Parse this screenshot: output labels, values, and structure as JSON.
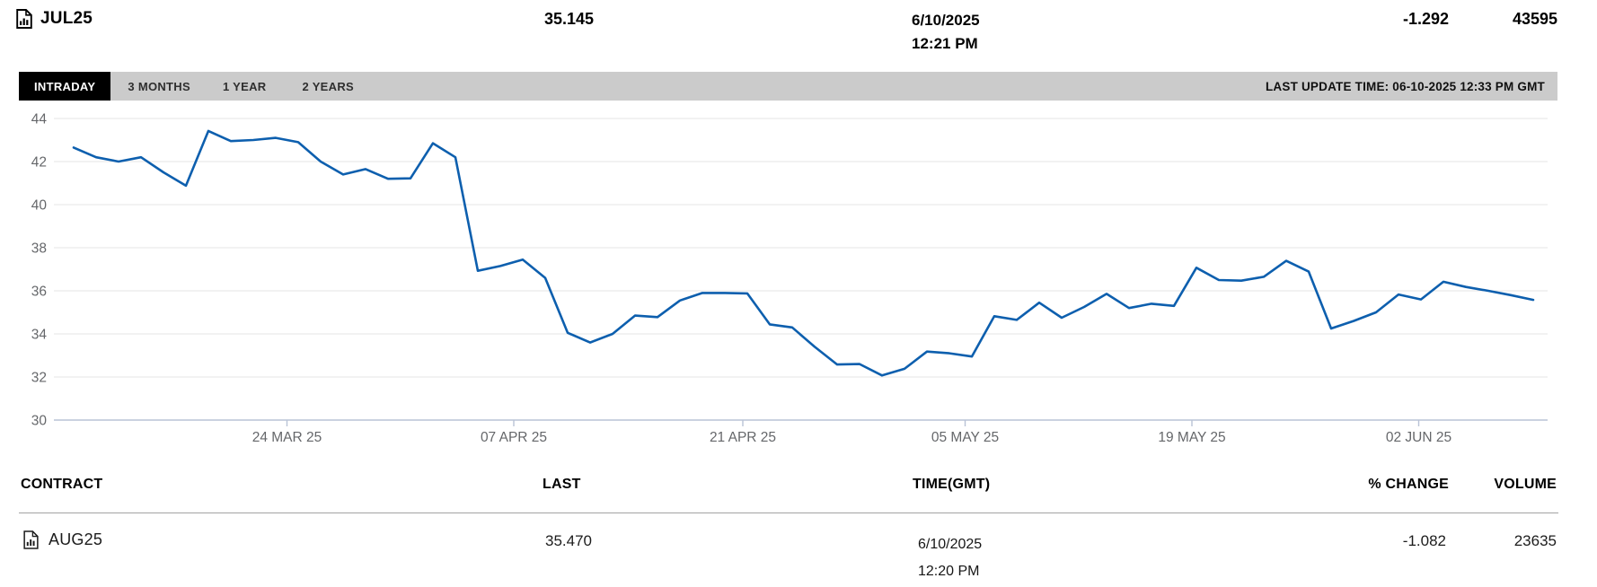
{
  "header": {
    "contract": "JUL25",
    "last": "35.145",
    "date": "6/10/2025",
    "time": "12:21 PM",
    "pct_change": "-1.292",
    "volume": "43595"
  },
  "tabs": {
    "items": [
      {
        "label": "INTRADAY",
        "active": true
      },
      {
        "label": "3 MONTHS",
        "active": false
      },
      {
        "label": "1 YEAR",
        "active": false
      },
      {
        "label": "2 YEARS",
        "active": false
      }
    ],
    "last_update": "LAST UPDATE TIME: 06-10-2025 12:33 PM GMT"
  },
  "table": {
    "headers": {
      "contract": "CONTRACT",
      "last": "LAST",
      "time": "TIME(GMT)",
      "pct_change": "% CHANGE",
      "volume": "VOLUME"
    },
    "row": {
      "contract": "AUG25",
      "last": "35.470",
      "date": "6/10/2025",
      "time": "12:20 PM",
      "pct_change": "-1.082",
      "volume": "23635"
    }
  },
  "chart_data": {
    "type": "line",
    "title": "",
    "xlabel": "",
    "ylabel": "",
    "grid": true,
    "legend": "none",
    "line_color": "#0d5fae",
    "grid_color": "#e6e6e6",
    "axis_color": "#b9c3d6",
    "label_color": "#65676a",
    "y_ticks": [
      44,
      42,
      40,
      38,
      36,
      34,
      32,
      30
    ],
    "ylim": [
      30,
      44
    ],
    "x_tick_labels": [
      "24 MAR 25",
      "07 APR 25",
      "21 APR 25",
      "05 MAY 25",
      "19 MAY 25",
      "02 JUN 25"
    ],
    "x_tick_positions": [
      9.5,
      19.6,
      29.8,
      39.7,
      49.8,
      59.9
    ],
    "series": [
      {
        "name": "JUL25",
        "values": [
          42.65,
          42.2,
          42.0,
          42.2,
          41.5,
          40.88,
          43.42,
          42.95,
          43.0,
          43.1,
          42.9,
          42.0,
          41.4,
          41.65,
          41.2,
          41.22,
          42.85,
          42.2,
          36.93,
          37.15,
          37.45,
          36.6,
          34.05,
          33.6,
          34.0,
          34.85,
          34.78,
          35.55,
          35.9,
          35.9,
          35.88,
          34.44,
          34.3,
          33.4,
          32.58,
          32.6,
          32.07,
          32.38,
          33.18,
          33.1,
          32.95,
          34.82,
          34.65,
          35.45,
          34.75,
          35.25,
          35.86,
          35.2,
          35.4,
          35.3,
          37.07,
          36.5,
          36.47,
          36.65,
          37.39,
          36.89,
          34.25,
          34.6,
          35.0,
          35.83,
          35.6,
          36.42,
          36.18,
          36.0,
          35.8,
          35.58
        ]
      }
    ]
  },
  "icons": {
    "contract_icon": "document-with-bar-chart"
  }
}
